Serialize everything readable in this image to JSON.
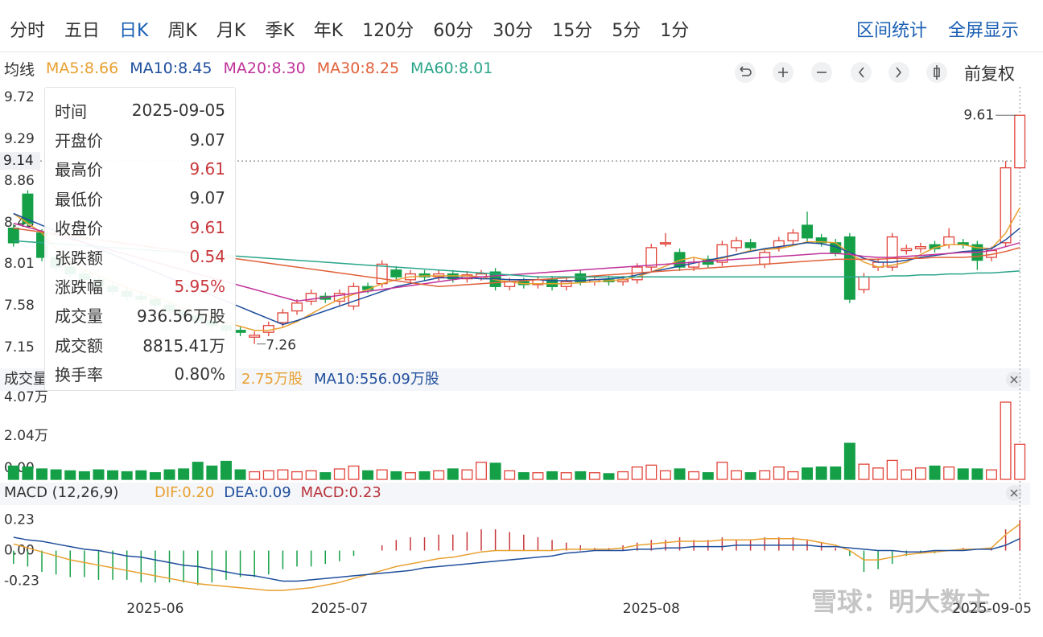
{
  "tabs": {
    "items": [
      "分时",
      "五日",
      "日K",
      "周K",
      "月K",
      "季K",
      "年K",
      "120分",
      "60分",
      "30分",
      "15分",
      "5分",
      "1分"
    ],
    "active": 2,
    "links": [
      "区间统计",
      "全屏显示"
    ]
  },
  "toolbar": {
    "indicator": "均线",
    "adjust": "前复权"
  },
  "tooltip": {
    "rows": [
      {
        "label": "时间",
        "value": "2025-09-05"
      },
      {
        "label": "开盘价",
        "value": "9.07"
      },
      {
        "label": "最高价",
        "value": "9.61",
        "color": "#c8373c"
      },
      {
        "label": "最低价",
        "value": "9.07"
      },
      {
        "label": "收盘价",
        "value": "9.61",
        "color": "#c8373c"
      },
      {
        "label": "张跌额",
        "value": "0.54",
        "color": "#c8373c"
      },
      {
        "label": "涨跌幅",
        "value": "5.95%",
        "color": "#c8373c"
      },
      {
        "label": "成交量",
        "value": "936.56万股"
      },
      {
        "label": "成交额",
        "value": "8815.41万"
      },
      {
        "label": "换手率",
        "value": "0.80%"
      }
    ]
  },
  "watermark": "雪球：明大数主",
  "chart_data": [
    {
      "type": "candlestick",
      "categories": [
        null,
        null,
        null,
        null,
        null,
        null,
        null,
        null,
        null,
        null,
        "2025-06",
        null,
        null,
        null,
        null,
        null,
        null,
        null,
        null,
        null,
        null,
        null,
        null,
        "2025-07",
        null,
        null,
        null,
        null,
        null,
        null,
        null,
        null,
        null,
        null,
        null,
        null,
        null,
        null,
        null,
        null,
        null,
        null,
        null,
        null,
        null,
        "2025-08",
        null,
        null,
        null,
        null,
        null,
        null,
        null,
        null,
        null,
        null,
        null,
        null,
        null,
        null,
        null,
        null,
        null,
        null,
        null,
        null,
        null,
        null,
        null,
        null,
        null,
        "2025-09-05"
      ],
      "open": [
        8.45,
        8.8,
        8.4,
        8.15,
        8.05,
        7.98,
        7.92,
        7.85,
        7.8,
        7.75,
        7.72,
        7.66,
        7.6,
        7.55,
        7.5,
        7.45,
        7.4,
        7.33,
        7.38,
        7.48,
        7.6,
        7.7,
        7.75,
        7.7,
        7.65,
        7.85,
        7.88,
        8.02,
        7.92,
        7.98,
        7.95,
        7.98,
        7.93,
        7.95,
        8.0,
        7.85,
        7.9,
        7.87,
        7.92,
        7.85,
        7.98,
        7.9,
        7.92,
        7.9,
        7.92,
        8.05,
        8.3,
        8.2,
        8.05,
        8.13,
        8.1,
        8.25,
        8.3,
        8.08,
        8.25,
        8.32,
        8.48,
        8.35,
        8.3,
        8.36,
        7.82,
        8.05,
        8.05,
        8.22,
        8.24,
        8.28,
        8.28,
        8.3,
        8.28,
        8.15,
        8.3,
        9.07
      ],
      "high": [
        8.49,
        8.84,
        8.44,
        8.19,
        8.09,
        8.02,
        7.96,
        7.89,
        7.84,
        7.79,
        7.76,
        7.7,
        7.64,
        7.59,
        7.54,
        7.49,
        7.44,
        7.39,
        7.49,
        7.62,
        7.72,
        7.82,
        7.79,
        7.82,
        7.89,
        7.89,
        8.12,
        8.06,
        8.02,
        8.02,
        8.02,
        8.02,
        8.01,
        8.02,
        8.04,
        7.94,
        7.94,
        7.96,
        7.96,
        7.94,
        8.02,
        7.96,
        7.96,
        7.96,
        8.09,
        8.29,
        8.4,
        8.24,
        8.14,
        8.17,
        8.32,
        8.36,
        8.34,
        8.24,
        8.36,
        8.44,
        8.62,
        8.39,
        8.34,
        8.4,
        7.99,
        8.14,
        8.4,
        8.28,
        8.3,
        8.32,
        8.45,
        8.34,
        8.32,
        8.26,
        9.14,
        9.61
      ],
      "low": [
        8.26,
        8.46,
        8.11,
        8.01,
        7.94,
        7.88,
        7.81,
        7.76,
        7.71,
        7.68,
        7.62,
        7.56,
        7.51,
        7.46,
        7.41,
        7.36,
        7.34,
        7.26,
        7.34,
        7.44,
        7.56,
        7.66,
        7.68,
        7.66,
        7.61,
        7.78,
        7.84,
        7.91,
        7.88,
        7.91,
        7.91,
        7.89,
        7.89,
        7.91,
        7.81,
        7.81,
        7.83,
        7.83,
        7.81,
        7.81,
        7.86,
        7.86,
        7.86,
        7.86,
        7.88,
        8.01,
        8.26,
        8.01,
        8.01,
        8.04,
        8.06,
        8.21,
        8.21,
        8.04,
        8.21,
        8.28,
        8.31,
        8.26,
        8.16,
        7.68,
        7.78,
        8.01,
        8.01,
        8.18,
        8.2,
        8.2,
        8.24,
        8.24,
        8.02,
        8.11,
        8.26,
        9.07
      ],
      "close": [
        8.3,
        8.5,
        8.15,
        8.05,
        7.98,
        7.92,
        7.85,
        7.8,
        7.75,
        7.72,
        7.66,
        7.6,
        7.55,
        7.5,
        7.45,
        7.4,
        7.38,
        7.35,
        7.45,
        7.58,
        7.68,
        7.78,
        7.72,
        7.78,
        7.85,
        7.82,
        8.08,
        7.95,
        7.98,
        7.95,
        7.98,
        7.93,
        7.97,
        7.98,
        7.85,
        7.9,
        7.87,
        7.92,
        7.85,
        7.9,
        7.9,
        7.92,
        7.9,
        7.92,
        8.05,
        8.25,
        8.3,
        8.05,
        8.1,
        8.08,
        8.28,
        8.32,
        8.25,
        8.2,
        8.32,
        8.4,
        8.35,
        8.3,
        8.2,
        7.72,
        7.95,
        8.1,
        8.36,
        8.24,
        8.26,
        8.24,
        8.36,
        8.28,
        8.12,
        8.22,
        9.07,
        9.61
      ],
      "up_color": "#e0443a",
      "down_color": "#15a048",
      "ylim": [
        7.15,
        9.72
      ],
      "yticks": [
        7.15,
        7.58,
        8.01,
        8.43,
        8.86,
        9.29,
        9.72
      ],
      "crosshair": 9.14,
      "series": [
        {
          "name": "MA5:8.66",
          "color": "#e8a030",
          "values": [
            8.6,
            8.5,
            8.4,
            8.25,
            8.12,
            8.02,
            7.96,
            7.9,
            7.84,
            7.79,
            7.74,
            7.69,
            7.63,
            7.58,
            7.53,
            7.48,
            7.44,
            7.4,
            7.4,
            7.43,
            7.49,
            7.57,
            7.65,
            7.72,
            7.77,
            7.82,
            7.88,
            7.92,
            7.95,
            7.96,
            7.96,
            7.96,
            7.96,
            7.95,
            7.92,
            7.9,
            7.88,
            7.88,
            7.88,
            7.88,
            7.89,
            7.9,
            7.91,
            7.92,
            7.95,
            8.0,
            8.06,
            8.12,
            8.15,
            8.12,
            8.14,
            8.18,
            8.22,
            8.23,
            8.24,
            8.27,
            8.31,
            8.31,
            8.3,
            8.19,
            8.1,
            8.05,
            8.07,
            8.1,
            8.18,
            8.25,
            8.28,
            8.28,
            8.25,
            8.24,
            8.4,
            8.66
          ]
        },
        {
          "name": "MA10:8.45",
          "color": "#1f4e9c",
          "values": [
            8.6,
            8.54,
            8.48,
            8.42,
            8.36,
            8.3,
            8.24,
            8.18,
            8.12,
            8.06,
            8.0,
            7.94,
            7.88,
            7.82,
            7.76,
            7.7,
            7.64,
            7.58,
            7.52,
            7.46,
            7.5,
            7.55,
            7.6,
            7.65,
            7.7,
            7.75,
            7.8,
            7.85,
            7.88,
            7.91,
            7.94,
            7.94,
            7.94,
            7.93,
            7.93,
            7.92,
            7.92,
            7.92,
            7.91,
            7.91,
            7.91,
            7.92,
            7.93,
            7.94,
            7.97,
            8.0,
            8.03,
            8.06,
            8.09,
            8.12,
            8.15,
            8.18,
            8.21,
            8.24,
            8.26,
            8.28,
            8.3,
            8.29,
            8.26,
            8.2,
            8.14,
            8.1,
            8.1,
            8.12,
            8.15,
            8.17,
            8.19,
            8.21,
            8.22,
            8.24,
            8.33,
            8.45
          ]
        },
        {
          "name": "MA20:8.30",
          "color": "#c0329a",
          "values": [
            8.5,
            8.46,
            8.42,
            8.38,
            8.34,
            8.3,
            8.26,
            8.22,
            8.18,
            8.14,
            8.1,
            8.06,
            8.02,
            7.98,
            7.94,
            7.9,
            7.86,
            7.82,
            7.78,
            7.74,
            7.7,
            7.72,
            7.74,
            7.76,
            7.78,
            7.8,
            7.82,
            7.84,
            7.86,
            7.88,
            7.9,
            7.92,
            7.94,
            7.95,
            7.96,
            7.97,
            7.98,
            7.99,
            8.0,
            8.01,
            8.02,
            8.03,
            8.04,
            8.05,
            8.06,
            8.07,
            8.08,
            8.09,
            8.1,
            8.11,
            8.12,
            8.13,
            8.14,
            8.15,
            8.16,
            8.17,
            8.18,
            8.19,
            8.19,
            8.18,
            8.16,
            8.15,
            8.15,
            8.16,
            8.17,
            8.18,
            8.19,
            8.2,
            8.2,
            8.22,
            8.26,
            8.3
          ]
        },
        {
          "name": "MA30:8.25",
          "color": "#e0603a",
          "values": [
            8.45,
            8.43,
            8.41,
            8.39,
            8.37,
            8.35,
            8.33,
            8.31,
            8.29,
            8.27,
            8.25,
            8.23,
            8.21,
            8.19,
            8.17,
            8.15,
            8.13,
            8.11,
            8.09,
            8.07,
            8.05,
            8.03,
            8.01,
            7.99,
            7.97,
            7.95,
            7.93,
            7.91,
            7.89,
            7.87,
            7.85,
            7.86,
            7.87,
            7.88,
            7.89,
            7.9,
            7.91,
            7.92,
            7.93,
            7.94,
            7.95,
            7.96,
            7.97,
            7.98,
            7.99,
            8.0,
            8.01,
            8.02,
            8.03,
            8.04,
            8.05,
            8.06,
            8.07,
            8.08,
            8.09,
            8.1,
            8.11,
            8.12,
            8.13,
            8.13,
            8.13,
            8.13,
            8.14,
            8.14,
            8.14,
            8.15,
            8.15,
            8.15,
            8.16,
            8.18,
            8.21,
            8.25
          ]
        },
        {
          "name": "MA60:8.01",
          "color": "#2aa58a",
          "values": [
            8.32,
            8.31,
            8.3,
            8.29,
            8.28,
            8.27,
            8.26,
            8.25,
            8.24,
            8.23,
            8.22,
            8.21,
            8.2,
            8.19,
            8.18,
            8.17,
            8.16,
            8.15,
            8.14,
            8.13,
            8.12,
            8.11,
            8.1,
            8.09,
            8.08,
            8.07,
            8.06,
            8.05,
            8.04,
            8.03,
            8.02,
            8.01,
            8.0,
            7.99,
            7.98,
            7.97,
            7.96,
            7.95,
            7.95,
            7.95,
            7.95,
            7.95,
            7.95,
            7.95,
            7.95,
            7.95,
            7.95,
            7.95,
            7.95,
            7.95,
            7.95,
            7.95,
            7.95,
            7.95,
            7.95,
            7.95,
            7.95,
            7.95,
            7.95,
            7.95,
            7.95,
            7.95,
            7.96,
            7.96,
            7.97,
            7.97,
            7.98,
            7.98,
            7.99,
            7.99,
            8.0,
            8.01
          ]
        }
      ]
    },
    {
      "type": "volume",
      "title": "成交量",
      "legend": [
        {
          "text": "2.75万股",
          "color": "#e8a030"
        },
        {
          "text": "MA10:556.09万股",
          "color": "#1f4e9c"
        }
      ],
      "values": [
        7000,
        6500,
        5500,
        5000,
        4500,
        4000,
        5000,
        4500,
        4000,
        4500,
        3500,
        5000,
        5500,
        9000,
        7000,
        9500,
        5000,
        4000,
        4500,
        5000,
        4000,
        4500,
        3500,
        5500,
        7000,
        4500,
        5000,
        4000,
        3500,
        4000,
        4500,
        5500,
        5000,
        9000,
        8500,
        4500,
        3500,
        3500,
        4000,
        3500,
        4000,
        3500,
        3000,
        4000,
        6500,
        7500,
        4500,
        5500,
        4000,
        3500,
        9000,
        4500,
        3500,
        4500,
        6500,
        4000,
        6000,
        6500,
        6500,
        19000,
        8000,
        6000,
        10000,
        5000,
        6000,
        7000,
        6500,
        5500,
        5500,
        5000,
        40700,
        18500
      ],
      "ylim": [
        0,
        40700
      ],
      "yticks": [
        {
          "value": 0,
          "label": "0.00"
        },
        {
          "value": 20400,
          "label": "2.04万"
        },
        {
          "value": 40700,
          "label": "4.07万"
        }
      ]
    },
    {
      "type": "macd",
      "title": "MACD (12,26,9)",
      "series": [
        {
          "name": "DIF:0.20",
          "color": "#e8a030",
          "values": [
            0.05,
            0.02,
            -0.01,
            -0.04,
            -0.07,
            -0.09,
            -0.11,
            -0.13,
            -0.15,
            -0.17,
            -0.19,
            -0.21,
            -0.23,
            -0.25,
            -0.26,
            -0.27,
            -0.28,
            -0.29,
            -0.3,
            -0.3,
            -0.29,
            -0.28,
            -0.26,
            -0.24,
            -0.21,
            -0.18,
            -0.15,
            -0.12,
            -0.1,
            -0.08,
            -0.06,
            -0.05,
            -0.03,
            -0.01,
            0.0,
            0.0,
            0.0,
            0.0,
            0.0,
            0.01,
            0.01,
            0.01,
            0.01,
            0.02,
            0.04,
            0.05,
            0.06,
            0.07,
            0.07,
            0.07,
            0.08,
            0.08,
            0.08,
            0.09,
            0.09,
            0.09,
            0.08,
            0.06,
            0.04,
            0.0,
            -0.07,
            -0.07,
            -0.05,
            -0.03,
            -0.02,
            -0.01,
            0.0,
            0.01,
            0.01,
            0.02,
            0.12,
            0.2
          ]
        },
        {
          "name": "DEA:0.09",
          "color": "#1f4e9c",
          "values": [
            0.1,
            0.08,
            0.07,
            0.05,
            0.03,
            0.01,
            0.0,
            -0.02,
            -0.04,
            -0.05,
            -0.07,
            -0.09,
            -0.11,
            -0.12,
            -0.14,
            -0.16,
            -0.18,
            -0.19,
            -0.21,
            -0.23,
            -0.23,
            -0.22,
            -0.21,
            -0.2,
            -0.19,
            -0.18,
            -0.17,
            -0.16,
            -0.15,
            -0.13,
            -0.12,
            -0.11,
            -0.1,
            -0.09,
            -0.08,
            -0.07,
            -0.06,
            -0.05,
            -0.04,
            -0.02,
            -0.01,
            0.0,
            0.0,
            0.0,
            0.01,
            0.01,
            0.02,
            0.02,
            0.03,
            0.03,
            0.03,
            0.04,
            0.04,
            0.04,
            0.04,
            0.04,
            0.04,
            0.03,
            0.03,
            0.02,
            0.01,
            0.0,
            0.0,
            -0.01,
            -0.01,
            0.0,
            0.0,
            0.0,
            0.01,
            0.01,
            0.04,
            0.09
          ]
        }
      ],
      "bars": {
        "name": "MACD:0.23",
        "color": "#b8323a",
        "up_color": "#c8373c",
        "down_color": "#15a048",
        "values": [
          -0.1,
          -0.12,
          -0.16,
          -0.18,
          -0.2,
          -0.2,
          -0.22,
          -0.22,
          -0.22,
          -0.24,
          -0.24,
          -0.24,
          -0.24,
          -0.26,
          -0.24,
          -0.22,
          -0.2,
          -0.2,
          -0.18,
          -0.14,
          -0.12,
          -0.12,
          -0.1,
          -0.08,
          -0.04,
          0.0,
          0.04,
          0.08,
          0.1,
          0.1,
          0.12,
          0.12,
          0.14,
          0.16,
          0.16,
          0.14,
          0.12,
          0.1,
          0.08,
          0.06,
          0.04,
          0.02,
          0.02,
          0.04,
          0.06,
          0.08,
          0.08,
          0.1,
          0.08,
          0.08,
          0.1,
          0.08,
          0.08,
          0.1,
          0.1,
          0.1,
          0.08,
          0.06,
          0.02,
          -0.04,
          -0.16,
          -0.14,
          -0.1,
          -0.04,
          -0.02,
          -0.02,
          0.0,
          0.02,
          0.0,
          0.02,
          0.16,
          0.23
        ]
      },
      "ylim": [
        -0.36,
        0.3
      ],
      "yticks": [
        -0.23,
        {
          "value": 0,
          "label": "0.00"
        },
        0.23
      ]
    }
  ]
}
